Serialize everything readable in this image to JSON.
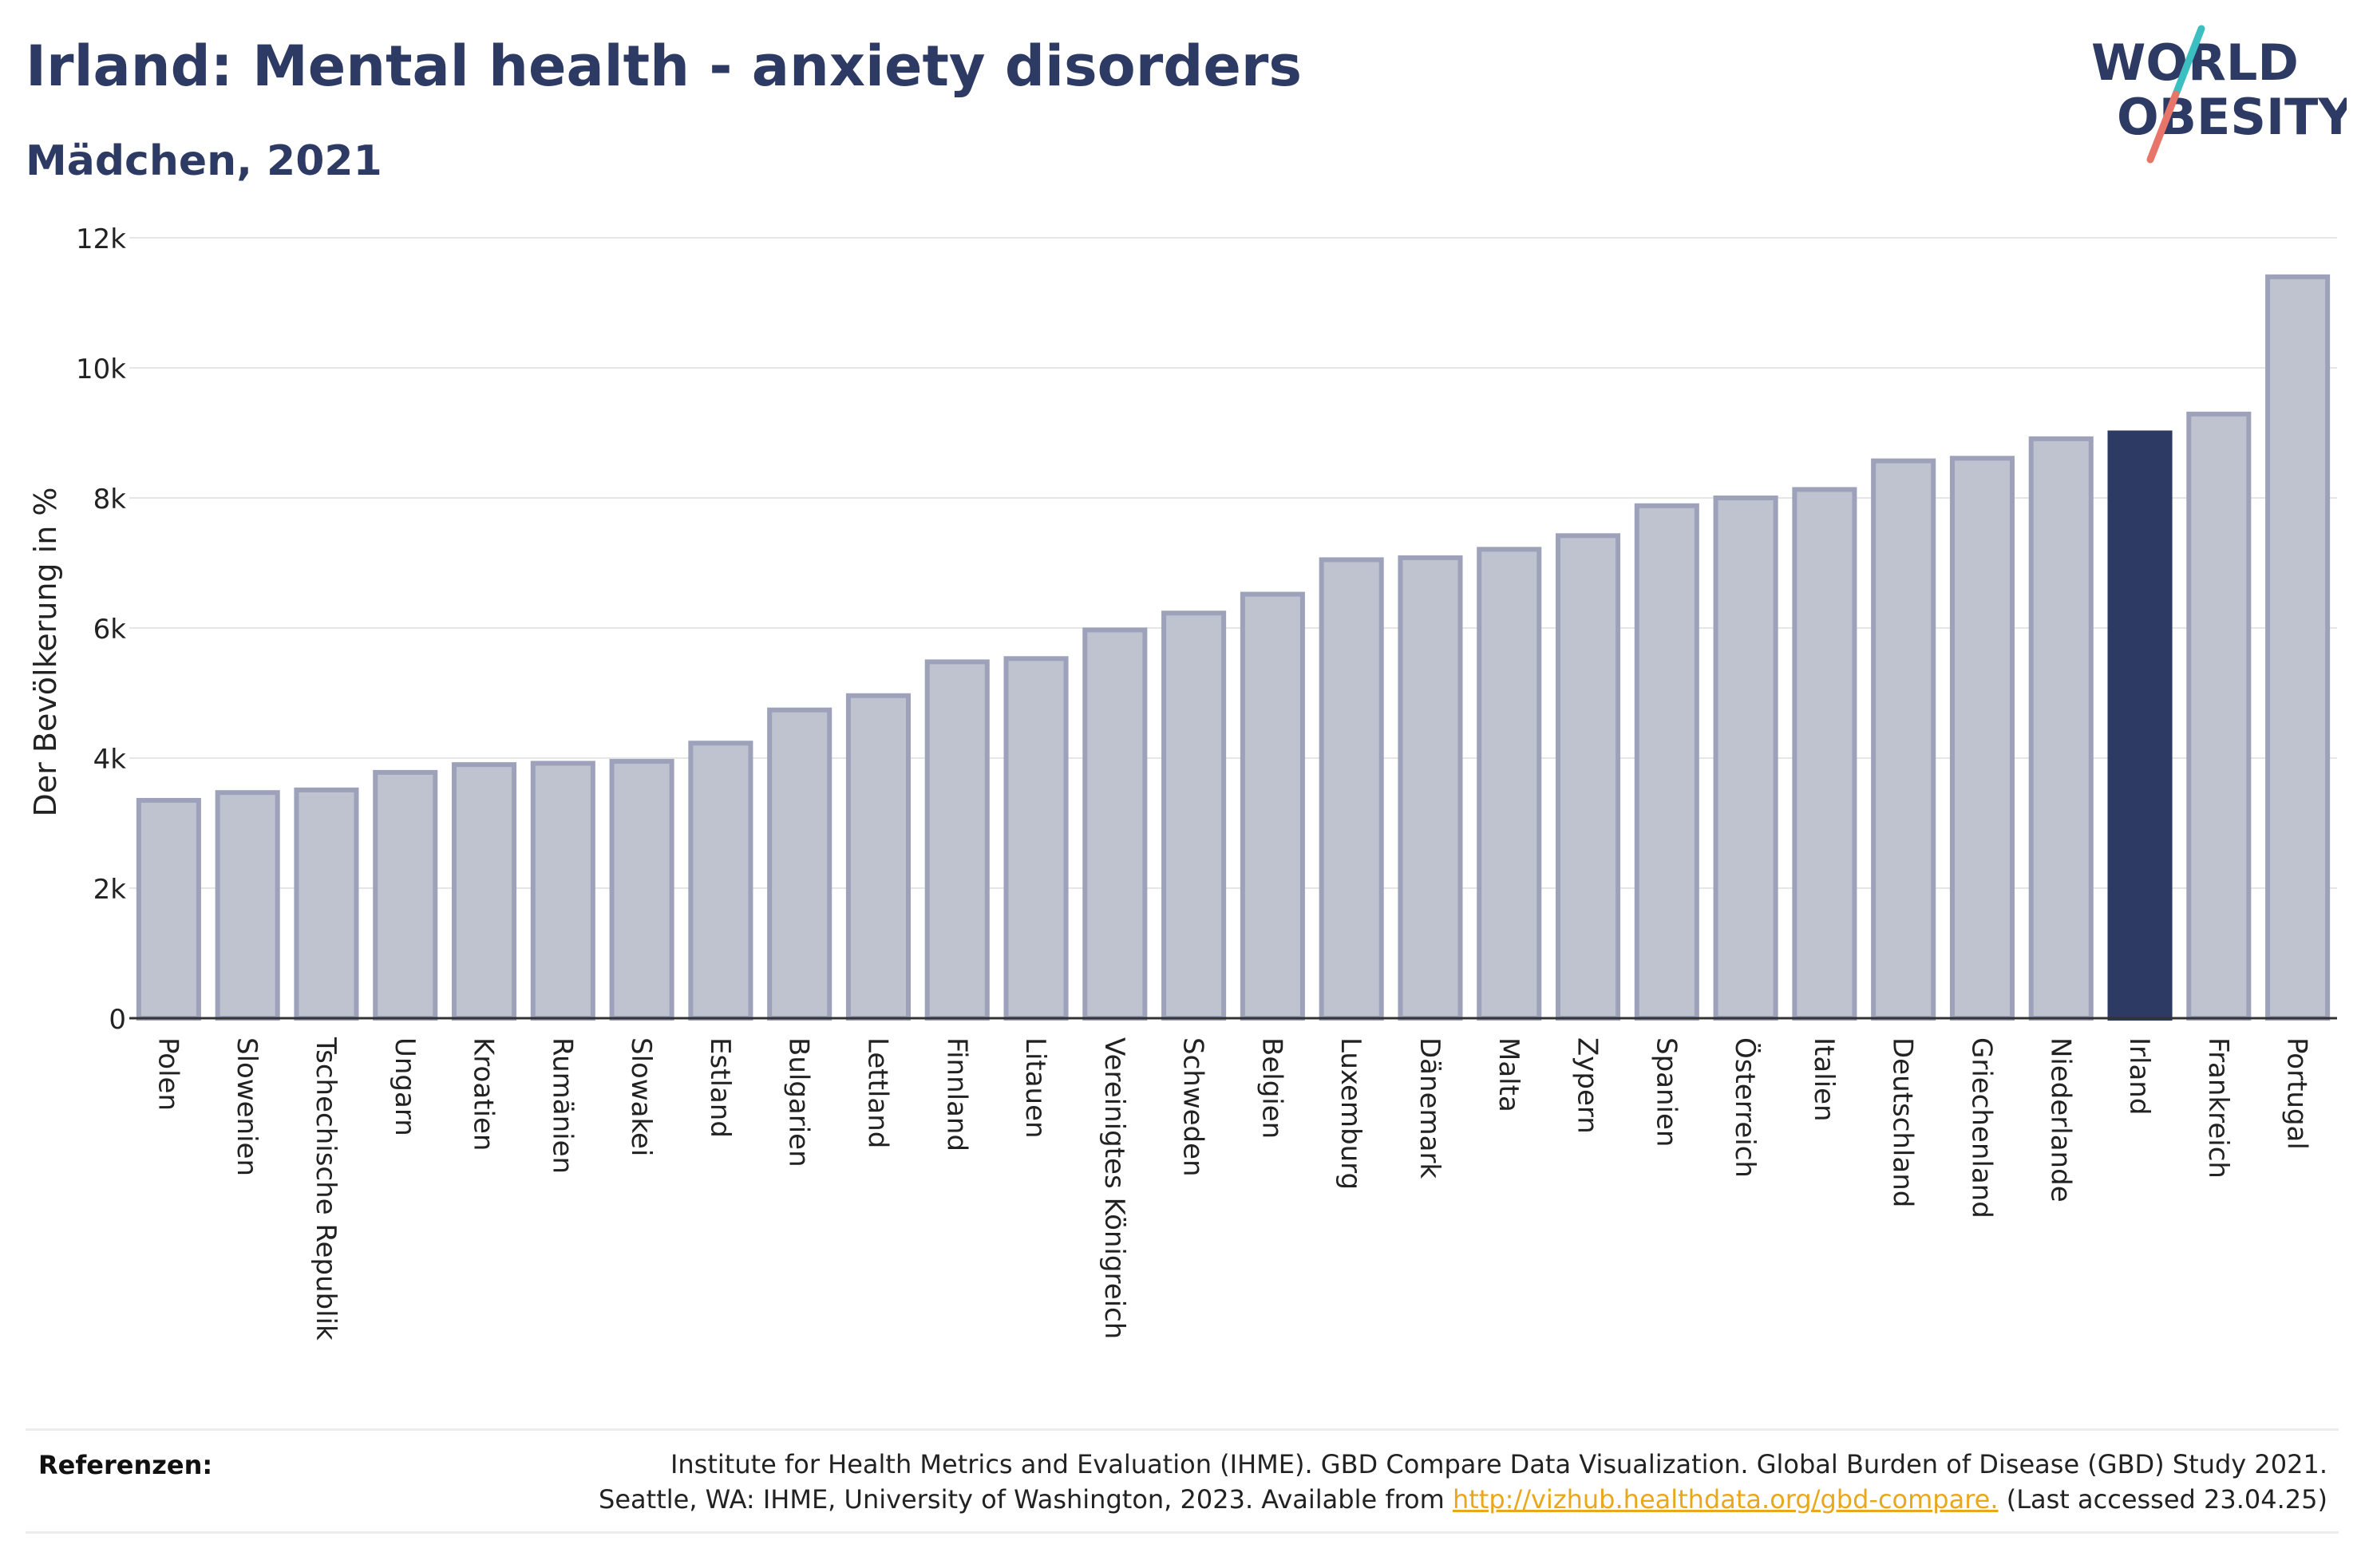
{
  "header": {
    "title": "Irland: Mental health - anxiety disorders",
    "subtitle": "Mädchen, 2021"
  },
  "logo": {
    "line1": "WORLD",
    "line2": "OBESITY",
    "colors": {
      "text": "#2d3a63",
      "slash_top": "#3bbfc0",
      "slash_bottom": "#e8756a"
    }
  },
  "chart_data": {
    "type": "bar",
    "ylabel": "Der Bevölkerung in %",
    "ylim": [
      0,
      12000
    ],
    "yticks": [
      0,
      2000,
      4000,
      6000,
      8000,
      10000,
      12000
    ],
    "ytick_labels": [
      "0",
      "2k",
      "4k",
      "6k",
      "8k",
      "10k",
      "12k"
    ],
    "grid": true,
    "highlight": "Irland",
    "colors": {
      "bar": "#bfc2cf",
      "bar_border": "#9da2ba",
      "highlight": "#2d3a63",
      "grid": "#e6e6e6",
      "axis": "#333333"
    },
    "categories": [
      "Polen",
      "Slowenien",
      "Tschechische Republik",
      "Ungarn",
      "Kroatien",
      "Rumänien",
      "Slowakei",
      "Estland",
      "Bulgarien",
      "Lettland",
      "Finnland",
      "Litauen",
      "Vereinigtes Königreich",
      "Schweden",
      "Belgien",
      "Luxemburg",
      "Dänemark",
      "Malta",
      "Zypern",
      "Spanien",
      "Österreich",
      "Italien",
      "Deutschland",
      "Griechenland",
      "Niederlande",
      "Irland",
      "Frankreich",
      "Portugal"
    ],
    "values": [
      3350,
      3470,
      3510,
      3780,
      3900,
      3920,
      3950,
      4230,
      4740,
      4960,
      5480,
      5530,
      5970,
      6230,
      6520,
      7050,
      7080,
      7210,
      7420,
      7880,
      8000,
      8130,
      8570,
      8610,
      8910,
      9000,
      9290,
      11400
    ]
  },
  "footer": {
    "label": "Referenzen:",
    "line1": "Institute for Health Metrics and Evaluation (IHME). GBD Compare Data Visualization. Global Burden of Disease (GBD) Study 2021.",
    "line2_pre": "Seattle, WA: IHME, University of Washington, 2023. Available from ",
    "link": "http://vizhub.healthdata.org/gbd-compare.",
    "line2_post": " (Last accessed 23.04.25)"
  }
}
